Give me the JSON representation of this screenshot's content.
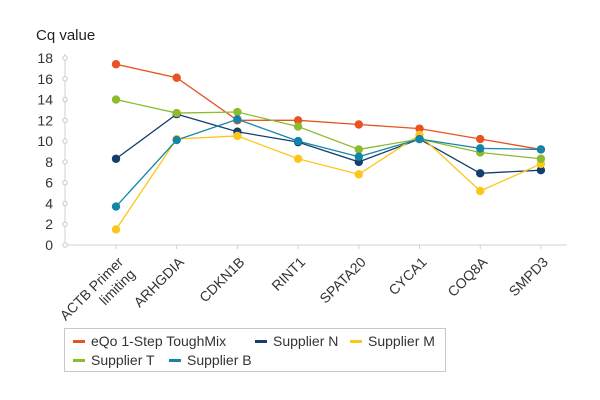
{
  "chart_data": {
    "type": "line",
    "ylabel": "Cq value",
    "xlabel": "",
    "title": "",
    "ylim": [
      0,
      18
    ],
    "yticks": [
      0,
      2,
      4,
      6,
      8,
      10,
      12,
      14,
      16,
      18
    ],
    "categories": [
      "ACTB Primer limiting",
      "ARHGDIA",
      "CDKN1B",
      "RINT1",
      "SPATA20",
      "CYCA1",
      "COQ8A",
      "SMPD3"
    ],
    "category_lines": [
      [
        "ACTB Primer",
        "limiting"
      ],
      [
        "ARHGDIA"
      ],
      [
        "CDKN1B"
      ],
      [
        "RINT1"
      ],
      [
        "SPATA20"
      ],
      [
        "CYCA1"
      ],
      [
        "COQ8A"
      ],
      [
        "SMPD3"
      ]
    ],
    "grid": false,
    "legend_position": "bottom-left",
    "series": [
      {
        "name": "eQo 1-Step ToughMix",
        "color": "#e8531f",
        "values": [
          17.4,
          16.1,
          12.0,
          12.0,
          11.6,
          11.2,
          10.2,
          9.2
        ]
      },
      {
        "name": "Supplier N",
        "color": "#143e6e",
        "values": [
          8.3,
          12.6,
          10.9,
          9.9,
          8.0,
          10.2,
          6.9,
          7.2
        ]
      },
      {
        "name": "Supplier M",
        "color": "#fec51a",
        "values": [
          1.5,
          10.2,
          10.5,
          8.3,
          6.8,
          10.6,
          5.2,
          7.8
        ]
      },
      {
        "name": "Supplier T",
        "color": "#8dbb2c",
        "values": [
          14.0,
          12.7,
          12.8,
          11.4,
          9.2,
          10.2,
          8.9,
          8.3
        ]
      },
      {
        "name": "Supplier B",
        "color": "#1385a8",
        "values": [
          3.7,
          10.1,
          12.1,
          10.0,
          8.5,
          10.2,
          9.3,
          9.2
        ]
      }
    ]
  }
}
